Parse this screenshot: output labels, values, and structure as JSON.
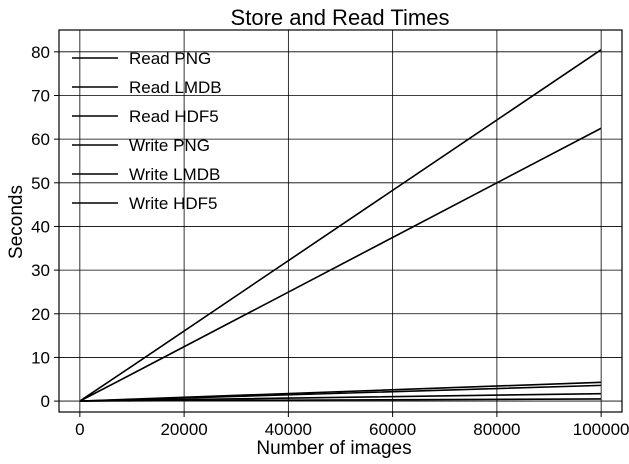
{
  "chart_data": {
    "type": "line",
    "title": "Store and Read Times",
    "xlabel": "Number of images",
    "ylabel": "Seconds",
    "xlim": [
      -4000,
      104000
    ],
    "ylim": [
      -2.5,
      85
    ],
    "xticks": [
      0,
      20000,
      40000,
      60000,
      80000,
      100000
    ],
    "yticks": [
      0,
      10,
      20,
      30,
      40,
      50,
      60,
      70,
      80
    ],
    "grid": true,
    "legend_position": "upper-left",
    "x": [
      10,
      100,
      1000,
      10000,
      100000
    ],
    "series": [
      {
        "name": "Read PNG",
        "color": "#000000",
        "values": [
          0.01,
          0.08,
          0.8,
          8.0,
          80.5
        ]
      },
      {
        "name": "Read LMDB",
        "color": "#000000",
        "values": [
          0.001,
          0.005,
          0.05,
          0.45,
          4.3
        ]
      },
      {
        "name": "Read HDF5",
        "color": "#000000",
        "values": [
          0.001,
          0.004,
          0.04,
          0.35,
          3.6
        ]
      },
      {
        "name": "Write PNG",
        "color": "#000000",
        "values": [
          0.006,
          0.062,
          0.62,
          6.2,
          62.5
        ]
      },
      {
        "name": "Write LMDB",
        "color": "#000000",
        "values": [
          0.001,
          0.003,
          0.02,
          0.17,
          1.7
        ]
      },
      {
        "name": "Write HDF5",
        "color": "#000000",
        "values": [
          0.001,
          0.001,
          0.005,
          0.05,
          0.5
        ]
      }
    ]
  }
}
